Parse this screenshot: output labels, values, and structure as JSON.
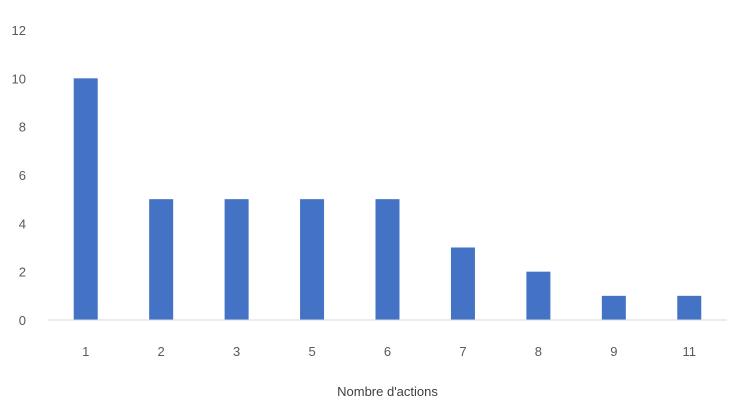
{
  "chart_data": {
    "type": "bar",
    "title": "",
    "xlabel": "Nombre d'actions",
    "ylabel": "",
    "categories": [
      "1",
      "2",
      "3",
      "5",
      "6",
      "7",
      "8",
      "9",
      "11"
    ],
    "values": [
      10,
      5,
      5,
      5,
      5,
      3,
      2,
      1,
      1
    ],
    "ylim": [
      0,
      12
    ],
    "yticks": [
      "0",
      "2",
      "4",
      "6",
      "8",
      "10",
      "12"
    ],
    "grid": false,
    "legend": "none",
    "bar_color": "#4472C4",
    "axis_color": "#D9D9D9"
  }
}
